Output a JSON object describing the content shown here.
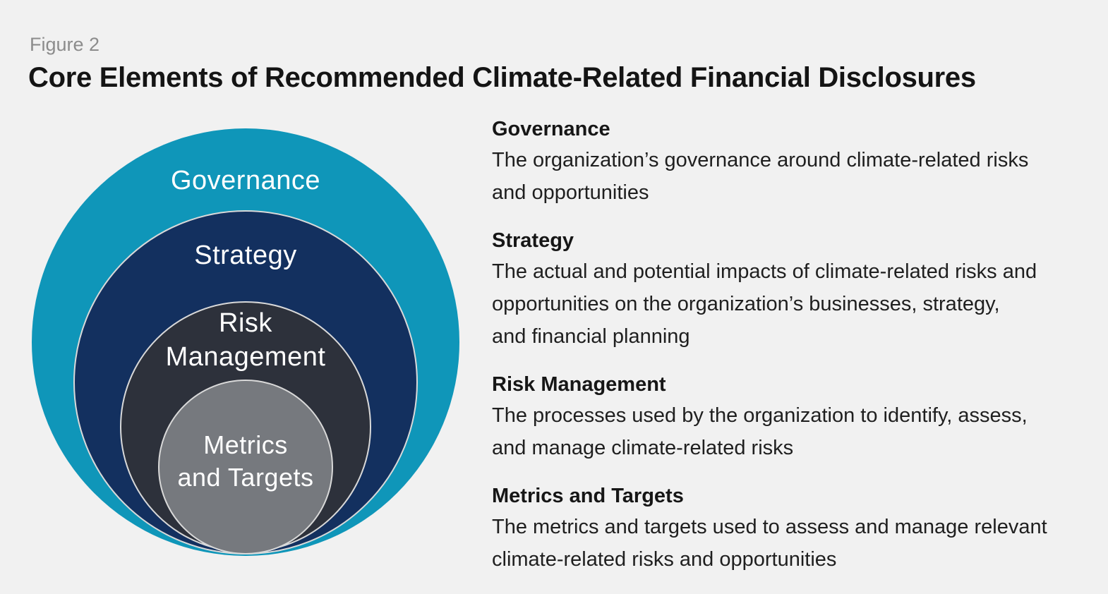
{
  "figure": {
    "label": "Figure 2",
    "title": "Core Elements of Recommended Climate-Related Financial Disclosures"
  },
  "diagram": {
    "type": "nested-circles",
    "label_color": "#ffffff",
    "ring_stroke_color": "#d9d9d9",
    "rings": [
      {
        "id": "governance",
        "label": "Governance",
        "lines": [
          "Governance"
        ],
        "color": "#0f96b9"
      },
      {
        "id": "strategy",
        "label": "Strategy",
        "lines": [
          "Strategy"
        ],
        "color": "#13305f"
      },
      {
        "id": "risk-management",
        "label": "Risk Management",
        "lines": [
          "Risk",
          "Management"
        ],
        "color": "#2d313b"
      },
      {
        "id": "metrics-and-targets",
        "label": "Metrics and Targets",
        "lines": [
          "Metrics",
          "and Targets"
        ],
        "color": "#76797e"
      }
    ]
  },
  "descriptions": [
    {
      "heading": "Governance",
      "body_lines": [
        "The organization’s governance around climate-related risks",
        "and opportunities"
      ]
    },
    {
      "heading": "Strategy",
      "body_lines": [
        "The actual and potential impacts of climate-related risks and",
        "opportunities on the organization’s businesses, strategy,",
        "and financial planning"
      ]
    },
    {
      "heading": "Risk Management",
      "body_lines": [
        "The processes used by the organization to identify, assess,",
        "and manage climate-related risks"
      ]
    },
    {
      "heading": "Metrics and Targets",
      "body_lines": [
        "The metrics and targets used to assess and manage relevant",
        "climate-related risks and opportunities"
      ]
    }
  ],
  "colors": {
    "background": "#f1f1f1",
    "figure_label": "#8c8c8c",
    "title": "#141414",
    "body_text": "#1f1f1f"
  }
}
